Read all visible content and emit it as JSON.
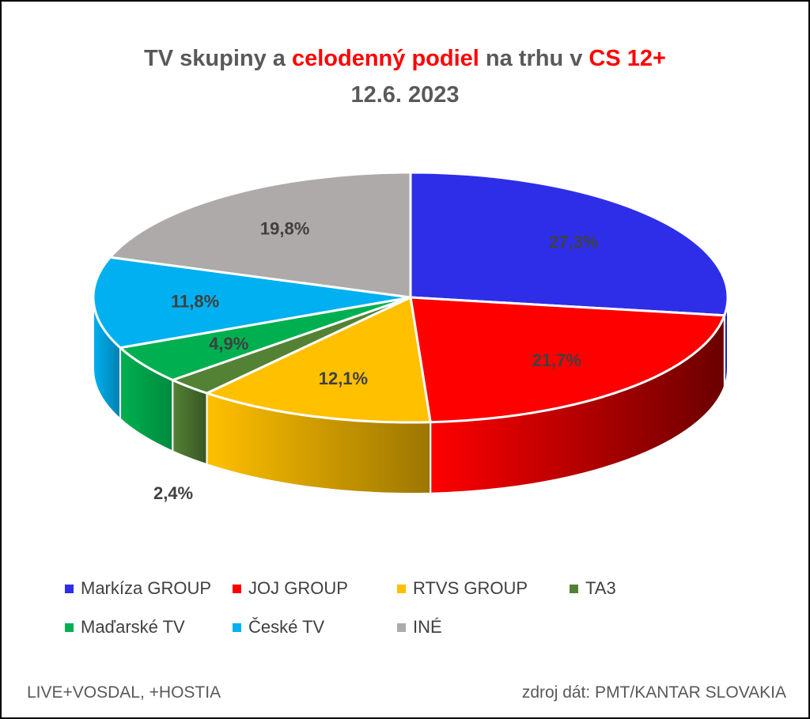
{
  "title": {
    "part1": "TV skupiny a ",
    "highlight1": "celodenný podiel",
    "part2": " na trhu v ",
    "highlight2": "CS 12+",
    "date": "12.6. 2023"
  },
  "chart_data": {
    "type": "pie",
    "style": "3d",
    "unit": "%",
    "start_angle_deg": 90,
    "direction": "clockwise",
    "legend_position": "bottom",
    "slices": [
      {
        "name": "Markíza GROUP",
        "value": 27.3,
        "label": "27,3%",
        "color": "#2e2ee8",
        "side_color": "#1a1a8a"
      },
      {
        "name": "JOJ GROUP",
        "value": 21.7,
        "label": "21,7%",
        "color": "#ff0000",
        "side_color": "#6b0000"
      },
      {
        "name": "RTVS GROUP",
        "value": 12.1,
        "label": "12,1%",
        "color": "#ffc000",
        "side_color": "#9c7600"
      },
      {
        "name": "TA3",
        "value": 2.4,
        "label": "2,4%",
        "color": "#548235",
        "side_color": "#375623"
      },
      {
        "name": "Maďarské  TV",
        "value": 4.9,
        "label": "4,9%",
        "color": "#00b050",
        "side_color": "#008a3e"
      },
      {
        "name": "České  TV",
        "value": 11.8,
        "label": "11,8%",
        "color": "#00b0f0",
        "side_color": "#0080b0"
      },
      {
        "name": "INÉ",
        "value": 19.8,
        "label": "19,8%",
        "color": "#aeaaaa",
        "side_color": "#767171"
      }
    ]
  },
  "footer": {
    "left": "LIVE+VOSDAL,  +HOSTIA",
    "right": "zdroj dát: PMT/KANTAR SLOVAKIA"
  }
}
